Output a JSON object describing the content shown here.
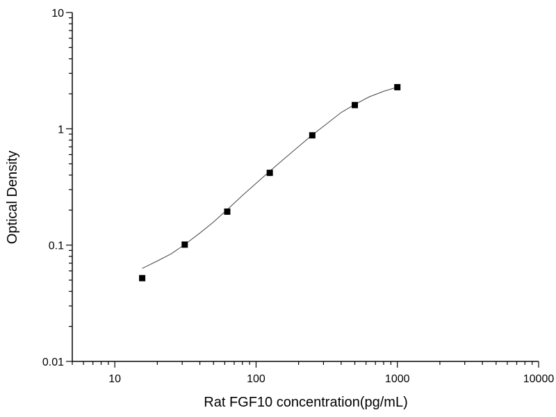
{
  "chart_data": {
    "type": "scatter",
    "title": "",
    "xlabel": "Rat FGF10 concentration(pg/mL)",
    "ylabel": "Optical Density",
    "x_scale": "log",
    "y_scale": "log",
    "xlim": [
      5,
      10000
    ],
    "ylim": [
      0.01,
      10
    ],
    "x_tick_labels": [
      "10",
      "100",
      "1000",
      "10000"
    ],
    "y_tick_labels": [
      "0.01",
      "0.1",
      "1",
      "10"
    ],
    "grid": false,
    "legend": "none",
    "series": [
      {
        "marker": "square",
        "color": "#000000",
        "x": [
          15.625,
          31.25,
          62.5,
          125,
          250,
          500,
          1000
        ],
        "y": [
          0.052,
          0.101,
          0.194,
          0.418,
          0.879,
          1.6,
          2.28
        ]
      }
    ],
    "fit_curve": {
      "style": "thin line",
      "color": "#444444",
      "x": [
        15.625,
        20,
        25,
        31.25,
        40,
        50,
        62.5,
        80,
        100,
        125,
        160,
        200,
        250,
        315,
        400,
        500,
        630,
        800,
        1000
      ],
      "y": [
        0.063,
        0.073,
        0.084,
        0.101,
        0.127,
        0.158,
        0.202,
        0.267,
        0.34,
        0.432,
        0.56,
        0.705,
        0.885,
        1.1,
        1.38,
        1.62,
        1.88,
        2.1,
        2.28
      ]
    }
  }
}
